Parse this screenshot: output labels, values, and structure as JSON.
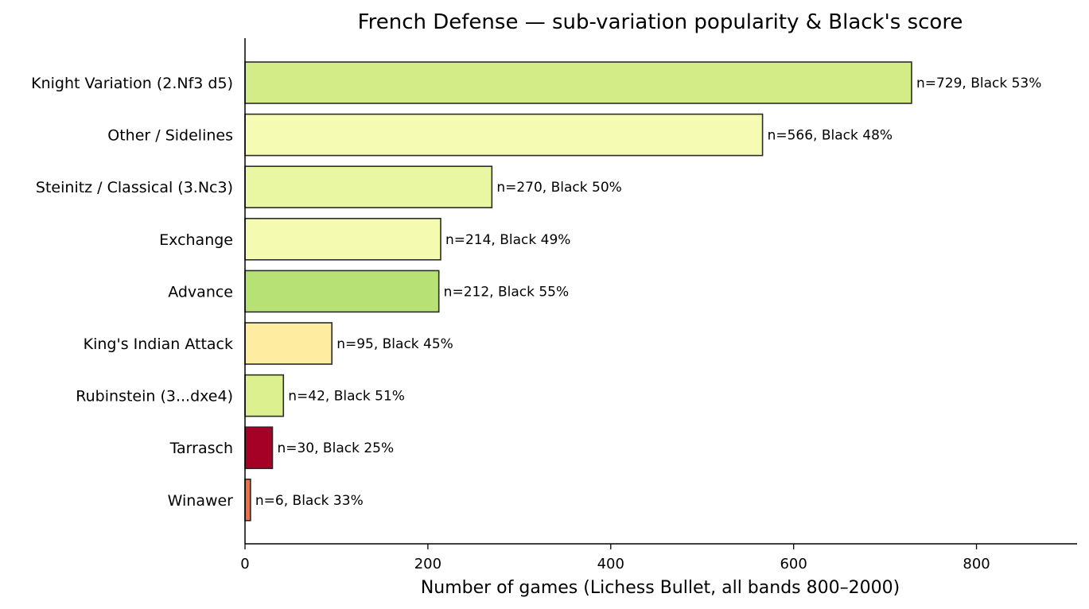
{
  "chart_data": {
    "type": "bar",
    "orientation": "horizontal",
    "title": "French Defense — sub-variation popularity & Black's score",
    "xlabel": "Number of games (Lichess Bullet, all bands 800–2000)",
    "ylabel": "",
    "xlim": [
      0,
      910
    ],
    "xticks": [
      0,
      200,
      400,
      600,
      800
    ],
    "grid": false,
    "categories": [
      "Knight Variation (2.Nf3 d5)",
      "Other / Sidelines",
      "Steinitz / Classical (3.Nc3)",
      "Exchange",
      "Advance",
      "King's Indian Attack",
      "Rubinstein (3...dxe4)",
      "Tarrasch",
      "Winawer"
    ],
    "values": [
      729,
      566,
      270,
      214,
      212,
      95,
      42,
      30,
      6
    ],
    "black_score_pct": [
      53,
      48,
      50,
      49,
      55,
      45,
      51,
      25,
      33
    ],
    "bar_labels": [
      "n=729, Black 53%",
      "n=566, Black 48%",
      "n=270, Black 50%",
      "n=214, Black 49%",
      "n=212, Black 55%",
      "n=95, Black 45%",
      "n=42, Black 51%",
      "n=30, Black 25%",
      "n=6, Black 33%"
    ],
    "colors": [
      "#d3ec87",
      "#f5fbb2",
      "#e9f6a2",
      "#f4faaf",
      "#b7e075",
      "#feeda1",
      "#dcf08f",
      "#a50026",
      "#f46d43"
    ],
    "edge_color": "#2b2b2b"
  }
}
